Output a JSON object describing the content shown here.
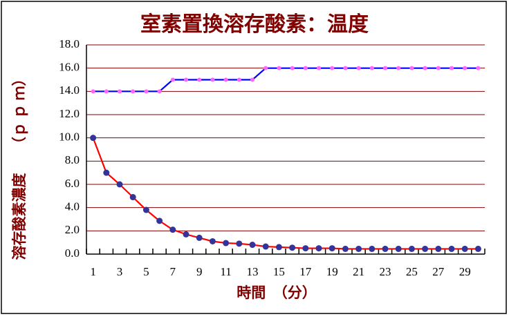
{
  "chart_data": {
    "type": "line",
    "title": "室素置換溶存酸素：温度",
    "x_label": "時間　（分）",
    "y_label": "溶存酸素濃度　　（ｐ ｐ ｍ）",
    "categories": [
      "1",
      null,
      "3",
      null,
      "5",
      null,
      "7",
      null,
      "9",
      null,
      "11",
      null,
      "13",
      null,
      "15",
      null,
      "17",
      null,
      "19",
      null,
      "21",
      null,
      "23",
      null,
      "25",
      null,
      "27",
      null,
      "29",
      null
    ],
    "series": [
      {
        "color": "#0000ff",
        "marker_color": "#ff66ff",
        "values": [
          14,
          14,
          14,
          14,
          14,
          14,
          15,
          15,
          15,
          15,
          15,
          15,
          15,
          16,
          16,
          16,
          16,
          16,
          16,
          16,
          16,
          16,
          16,
          16,
          16,
          16,
          16,
          16,
          16,
          16
        ]
      },
      {
        "color": "#ff0000",
        "marker_color": "#333399",
        "values": [
          10,
          7.0,
          6.0,
          4.9,
          3.8,
          2.86,
          2.1,
          1.7,
          1.4,
          1.1,
          0.95,
          0.9,
          0.8,
          0.65,
          0.6,
          0.55,
          0.5,
          0.5,
          0.5,
          0.45,
          0.45,
          0.45,
          0.45,
          0.45,
          0.45,
          0.45,
          0.45,
          0.45,
          0.45,
          0.45
        ]
      }
    ],
    "ylim": [
      0,
      18
    ],
    "yticks": [
      {
        "value": 0,
        "label": "0.0"
      },
      {
        "value": 2,
        "label": "2.0"
      },
      {
        "value": 4,
        "label": "4.0"
      },
      {
        "value": 6,
        "label": "6.0"
      },
      {
        "value": 8,
        "label": "8.0"
      },
      {
        "value": 10,
        "label": "10.0"
      },
      {
        "value": 12,
        "label": "12.0"
      },
      {
        "value": 14,
        "label": "14.0"
      },
      {
        "value": 16,
        "label": "16.0"
      },
      {
        "value": 18,
        "label": "18.0"
      }
    ],
    "grid": true,
    "grid_color": "#800000"
  }
}
